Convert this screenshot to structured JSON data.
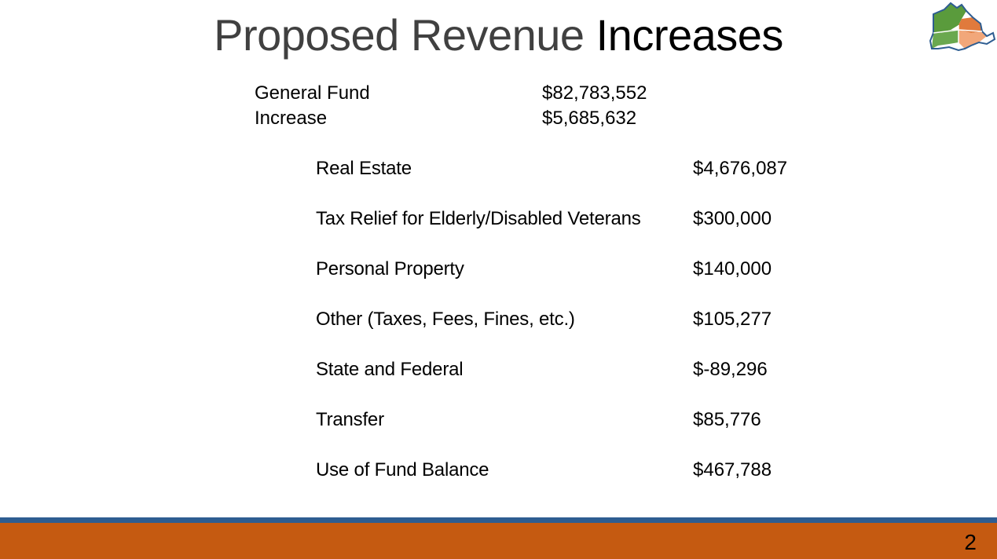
{
  "title": {
    "light": "Proposed Revenue",
    "bold": "Increases"
  },
  "summary": [
    {
      "label": "General Fund",
      "value": "$82,783,552"
    },
    {
      "label": "Increase",
      "value": "$5,685,632"
    }
  ],
  "items": [
    {
      "label": "Real Estate",
      "value": "$4,676,087"
    },
    {
      "label": "Tax Relief for Elderly/Disabled Veterans",
      "value": "$300,000"
    },
    {
      "label": "Personal Property",
      "value": "$140,000"
    },
    {
      "label": "Other (Taxes, Fees, Fines, etc.)",
      "value": "$105,277"
    },
    {
      "label": "State and Federal",
      "value": "$-89,296"
    },
    {
      "label": "Transfer",
      "value": "$85,776"
    },
    {
      "label": "Use of Fund Balance",
      "value": "$467,788"
    }
  ],
  "footer": {
    "page_number": "2"
  },
  "colors": {
    "footer_line": "#2e5d91",
    "footer_band": "#c55a11",
    "logo_green": "#5a9b3c",
    "logo_orange": "#e07a3c",
    "logo_peach": "#f2a77a",
    "logo_outline": "#2e5d91"
  }
}
